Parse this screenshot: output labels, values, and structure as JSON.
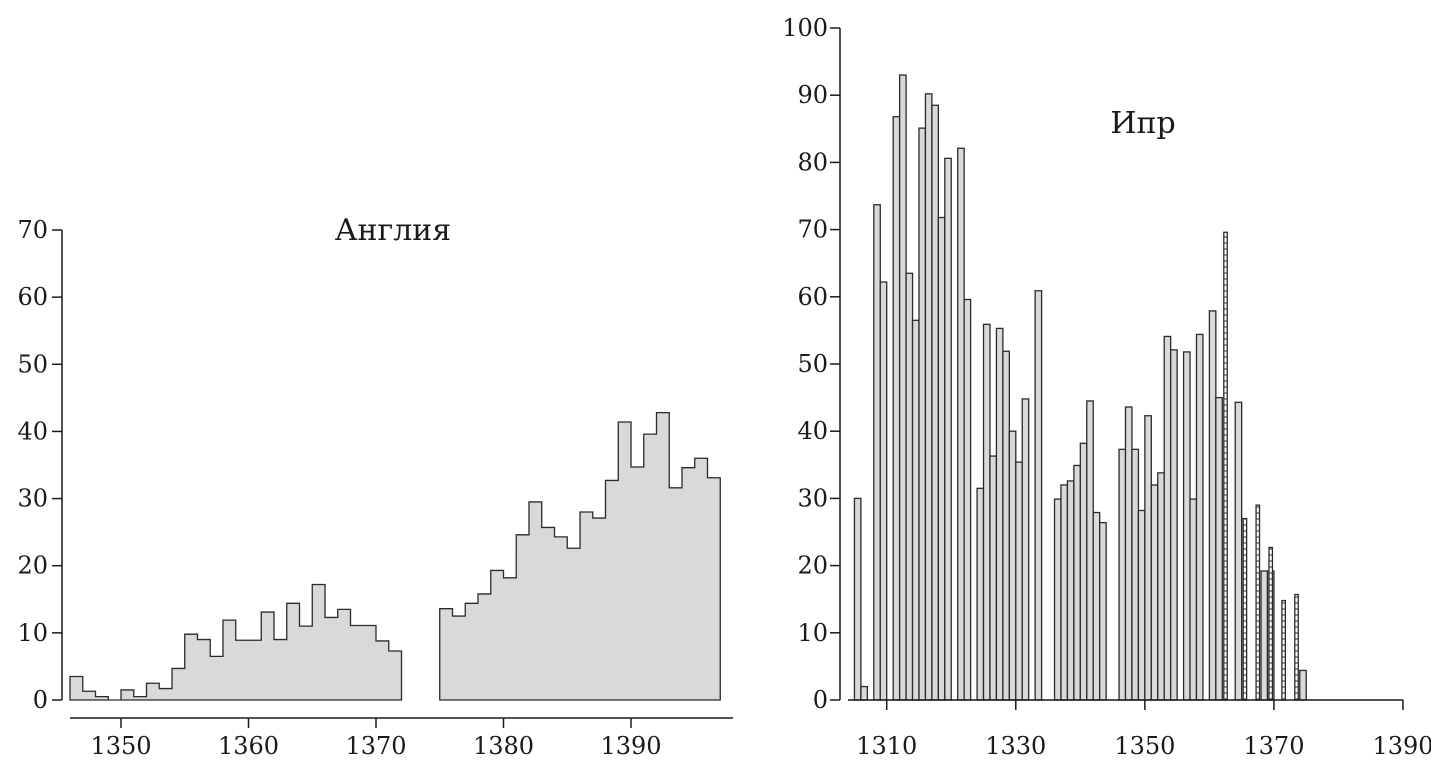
{
  "chart_data": [
    {
      "type": "bar",
      "title": "Англия",
      "xlabel": "",
      "ylabel": "",
      "ylim": [
        0,
        70
      ],
      "xlim": [
        1346,
        1398
      ],
      "yticks": [
        "0",
        "10",
        "20",
        "30",
        "40",
        "50",
        "60",
        "70"
      ],
      "xticks": [
        "1350",
        "1360",
        "1370",
        "1380",
        "1390"
      ],
      "fill_color": "#d8d9db",
      "x": [
        1347,
        1348,
        1349,
        1350,
        1351,
        1352,
        1353,
        1354,
        1355,
        1356,
        1357,
        1358,
        1359,
        1360,
        1361,
        1362,
        1363,
        1364,
        1365,
        1366,
        1367,
        1368,
        1369,
        1370,
        1371,
        1372,
        1373,
        1374,
        1375,
        1376,
        1377,
        1378,
        1379,
        1380,
        1381,
        1382,
        1383,
        1384,
        1385,
        1386,
        1387,
        1388,
        1389,
        1390,
        1391,
        1392,
        1393,
        1394,
        1395,
        1396,
        1397,
        1398
      ],
      "values": [
        3.5,
        1.3,
        0.5,
        0,
        1.5,
        0.5,
        2.5,
        1.7,
        4.7,
        9.8,
        9.0,
        6.5,
        11.9,
        8.9,
        8.9,
        13.1,
        9.0,
        14.4,
        11.0,
        17.2,
        12.3,
        13.5,
        11.1,
        11.1,
        8.8,
        7.3,
        0,
        0,
        0,
        13.6,
        12.5,
        14.4,
        15.8,
        19.3,
        18.2,
        24.6,
        29.5,
        25.7,
        24.3,
        22.6,
        28.0,
        27.1,
        32.7,
        41.4,
        34.7,
        39.6,
        42.8,
        31.6,
        34.6,
        36.0,
        33.1,
        0
      ]
    },
    {
      "type": "bar",
      "title": "Ипр",
      "xlabel": "",
      "ylabel": "",
      "ylim": [
        0,
        100
      ],
      "xlim": [
        1304,
        1390
      ],
      "yticks": [
        "0",
        "10",
        "20",
        "30",
        "40",
        "50",
        "60",
        "70",
        "80",
        "90",
        "100"
      ],
      "xticks": [
        "1310",
        "1330",
        "1350",
        "1370",
        "1390"
      ],
      "fill_color": "#d8d9db",
      "series": [
        {
          "values": [
            {
              "x": 1305,
              "y": 30
            },
            {
              "x": 1306,
              "y": 2
            },
            {
              "x": 1308,
              "y": 73.7
            },
            {
              "x": 1309,
              "y": 62.2
            },
            {
              "x": 1311,
              "y": 86.8
            },
            {
              "x": 1312,
              "y": 93
            },
            {
              "x": 1313,
              "y": 63.5
            },
            {
              "x": 1314,
              "y": 56.5
            },
            {
              "x": 1315,
              "y": 85.1
            },
            {
              "x": 1316,
              "y": 90.2
            },
            {
              "x": 1317,
              "y": 88.5
            },
            {
              "x": 1318,
              "y": 71.8
            },
            {
              "x": 1319,
              "y": 80.6
            },
            {
              "x": 1321,
              "y": 82.1
            },
            {
              "x": 1322,
              "y": 59.6
            },
            {
              "x": 1324,
              "y": 31.5
            },
            {
              "x": 1325,
              "y": 55.9
            },
            {
              "x": 1326,
              "y": 36.3
            },
            {
              "x": 1327,
              "y": 55.3
            },
            {
              "x": 1328,
              "y": 51.9
            },
            {
              "x": 1329,
              "y": 40
            },
            {
              "x": 1330,
              "y": 35.4
            },
            {
              "x": 1331,
              "y": 44.8
            },
            {
              "x": 1333,
              "y": 60.9
            },
            {
              "x": 1336,
              "y": 29.9
            },
            {
              "x": 1337,
              "y": 32
            },
            {
              "x": 1338,
              "y": 32.6
            },
            {
              "x": 1339,
              "y": 34.9
            },
            {
              "x": 1340,
              "y": 38.2
            },
            {
              "x": 1341,
              "y": 44.5
            },
            {
              "x": 1342,
              "y": 27.9
            },
            {
              "x": 1343,
              "y": 26.4
            },
            {
              "x": 1346,
              "y": 37.3
            },
            {
              "x": 1347,
              "y": 43.6
            },
            {
              "x": 1348,
              "y": 37.3
            },
            {
              "x": 1349,
              "y": 28.2
            },
            {
              "x": 1350,
              "y": 42.3
            },
            {
              "x": 1351,
              "y": 32
            },
            {
              "x": 1352,
              "y": 33.8
            },
            {
              "x": 1353,
              "y": 54.1
            },
            {
              "x": 1354,
              "y": 52.1
            },
            {
              "x": 1356,
              "y": 51.8
            },
            {
              "x": 1357,
              "y": 29.9
            },
            {
              "x": 1358,
              "y": 54.4
            },
            {
              "x": 1360,
              "y": 57.9
            },
            {
              "x": 1361,
              "y": 45
            },
            {
              "x": 1364,
              "y": 44.3
            },
            {
              "x": 1368,
              "y": 19.2
            },
            {
              "x": 1369,
              "y": 19.2
            },
            {
              "x": 1374,
              "y": 4.4
            }
          ]
        },
        {
          "pattern": "hatched",
          "values": [
            {
              "x": 1362,
              "y": 69.6
            },
            {
              "x": 1365,
              "y": 27
            },
            {
              "x": 1367,
              "y": 29
            },
            {
              "x": 1369,
              "y": 22.7
            },
            {
              "x": 1371,
              "y": 14.8
            },
            {
              "x": 1373,
              "y": 15.7
            }
          ]
        }
      ]
    }
  ]
}
